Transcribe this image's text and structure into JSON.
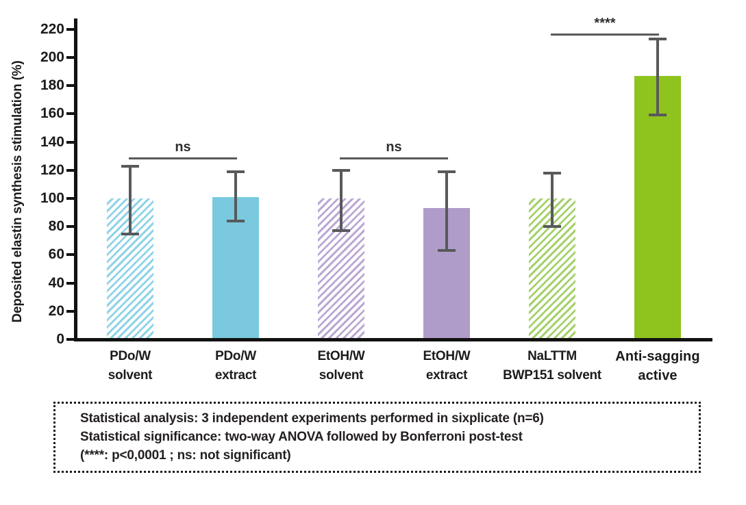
{
  "chart_data": {
    "type": "bar",
    "title": "",
    "xlabel": "",
    "ylabel": "Deposited elastin synthesis stimulation (%)",
    "ylim": [
      0,
      220
    ],
    "yticks": [
      0,
      20,
      40,
      60,
      80,
      100,
      120,
      140,
      160,
      180,
      200,
      220
    ],
    "grid": false,
    "legend": "none",
    "axis_color": "#111111",
    "error_bar_color": "#58595B",
    "bars": [
      {
        "label_lines": [
          "PDo/W",
          "solvent"
        ],
        "value": 100,
        "err_hi": 123,
        "err_lo": 75,
        "color": "#8FD3E8",
        "style": "hatched",
        "label_bold": false
      },
      {
        "label_lines": [
          "PDo/W",
          "extract"
        ],
        "value": 101,
        "err_hi": 119,
        "err_lo": 84,
        "color": "#7AC9DE",
        "style": "solid",
        "label_bold": false
      },
      {
        "label_lines": [
          "EtOH/W",
          "solvent"
        ],
        "value": 100,
        "err_hi": 120,
        "err_lo": 77,
        "color": "#BBA8D4",
        "style": "hatched",
        "label_bold": false
      },
      {
        "label_lines": [
          "EtOH/W",
          "extract"
        ],
        "value": 93,
        "err_hi": 119,
        "err_lo": 63,
        "color": "#B09CC9",
        "style": "solid",
        "label_bold": false
      },
      {
        "label_lines": [
          "NaLTTM",
          "BWP151 solvent"
        ],
        "value": 100,
        "err_hi": 118,
        "err_lo": 80,
        "color": "#A5D16B",
        "style": "hatched",
        "label_bold": false
      },
      {
        "label_lines": [
          "Anti-sagging",
          "active"
        ],
        "value": 187,
        "err_hi": 213,
        "err_lo": 159,
        "color": "#8FC31E",
        "style": "solid",
        "label_bold": true
      }
    ],
    "significance_brackets": [
      {
        "from": 0,
        "to": 1,
        "label": "ns",
        "y_value": 129
      },
      {
        "from": 2,
        "to": 3,
        "label": "ns",
        "y_value": 129
      },
      {
        "from": 4,
        "to": 5,
        "label": "****",
        "y_value": 217
      }
    ]
  },
  "note_box": {
    "lines": [
      "Statistical analysis: 3 independent experiments performed in sixplicate (n=6)",
      "Statistical significance: two-way ANOVA followed by Bonferroni post-test",
      "(****: p<0,0001 ; ns: not significant)"
    ]
  }
}
